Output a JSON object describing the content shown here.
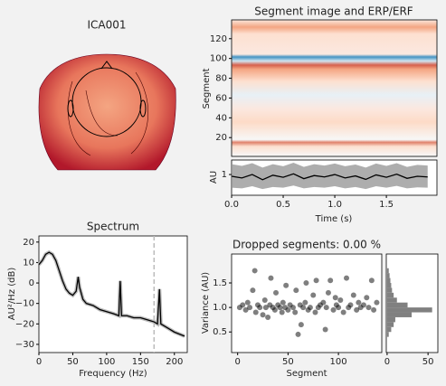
{
  "chart_data": [
    {
      "type": "topomap",
      "title": "ICA001"
    },
    {
      "type": "image",
      "title": "Segment image and ERP/ERF",
      "y_label": "Segment",
      "ylim": [
        1,
        139
      ],
      "yticks": [
        20,
        40,
        60,
        80,
        100,
        120
      ]
    },
    {
      "type": "line",
      "x_label": "Time (s)",
      "y_label": "AU",
      "xlim": [
        0,
        1.99
      ],
      "ylim": [
        0.4,
        1.42
      ],
      "xticks": [
        {
          "value": 0,
          "label": "0.0"
        },
        0.5,
        {
          "value": 1,
          "label": "1.0"
        },
        1.5
      ],
      "yticks": [
        1
      ],
      "x": [
        0,
        0.1,
        0.2,
        0.3,
        0.4,
        0.5,
        0.6,
        0.7,
        0.8,
        0.9,
        1.0,
        1.1,
        1.2,
        1.3,
        1.4,
        1.5,
        1.6,
        1.7,
        1.8,
        1.9
      ],
      "series": [
        {
          "color": "#000000",
          "values": [
            0.95,
            0.9,
            1.0,
            0.85,
            0.98,
            0.92,
            1.02,
            0.88,
            0.97,
            0.93,
            1.0,
            0.9,
            0.96,
            0.86,
            0.99,
            0.92,
            1.01,
            0.89,
            0.95,
            0.93
          ]
        }
      ],
      "band": {
        "color": "#999999",
        "lower": [
          0.62,
          0.6,
          0.66,
          0.58,
          0.64,
          0.62,
          0.68,
          0.6,
          0.64,
          0.62,
          0.66,
          0.6,
          0.64,
          0.58,
          0.66,
          0.62,
          0.67,
          0.6,
          0.63,
          0.62
        ],
        "upper": [
          1.3,
          1.25,
          1.33,
          1.2,
          1.3,
          1.24,
          1.34,
          1.22,
          1.3,
          1.26,
          1.32,
          1.24,
          1.29,
          1.2,
          1.32,
          1.25,
          1.33,
          1.22,
          1.28,
          1.26
        ]
      }
    },
    {
      "type": "line",
      "title": "Spectrum",
      "x_label": "Frequency (Hz)",
      "y_label": "AU²/Hz (dB)",
      "xlim": [
        0,
        219
      ],
      "ylim": [
        -34,
        23
      ],
      "xticks": [
        0,
        50,
        100,
        150,
        200
      ],
      "yticks": [
        {
          "value": -30,
          "label": "−30"
        },
        {
          "value": -20,
          "label": "−20"
        },
        {
          "value": -10,
          "label": "−10"
        },
        0,
        10,
        20
      ],
      "vline": 170,
      "x": [
        0,
        5,
        10,
        15,
        20,
        25,
        30,
        35,
        40,
        45,
        50,
        55,
        58,
        60,
        65,
        70,
        80,
        90,
        100,
        110,
        118,
        120,
        122,
        130,
        140,
        150,
        160,
        170,
        175,
        178,
        180,
        190,
        200,
        215
      ],
      "series": [
        {
          "color": "#000000",
          "values": [
            9,
            11,
            14,
            15,
            14,
            11,
            6,
            1,
            -3,
            -5,
            -6,
            -4,
            3,
            -2,
            -8,
            -10,
            -11,
            -13,
            -14,
            -15,
            -16,
            1,
            -16,
            -16,
            -17,
            -17,
            -18,
            -19,
            -20,
            -3,
            -20,
            -22,
            -24,
            -26
          ]
        }
      ]
    },
    {
      "type": "scatter",
      "title": "Dropped segments: 0.00 %",
      "x_label": "Segment",
      "y_label": "Variance (AU)",
      "xlim": [
        -6,
        143
      ],
      "ylim": [
        0.08,
        2.09
      ],
      "xticks": [
        0,
        50,
        100
      ],
      "yticks": [
        0.5,
        {
          "value": 1,
          "label": "1.0"
        },
        1.5
      ],
      "color": "#000000",
      "x": [
        2,
        5,
        8,
        10,
        12,
        15,
        17,
        18,
        20,
        22,
        25,
        27,
        28,
        30,
        32,
        33,
        35,
        37,
        38,
        40,
        42,
        44,
        45,
        47,
        48,
        50,
        52,
        55,
        57,
        58,
        60,
        62,
        63,
        65,
        67,
        68,
        70,
        72,
        75,
        77,
        78,
        80,
        82,
        85,
        87,
        88,
        90,
        92,
        95,
        97,
        98,
        100,
        102,
        105,
        108,
        110,
        112,
        115,
        118,
        120,
        122,
        125,
        128,
        130,
        133,
        135,
        138
      ],
      "values": [
        1.0,
        1.05,
        0.95,
        1.1,
        1.0,
        1.35,
        1.75,
        0.9,
        1.05,
        1.0,
        0.85,
        1.15,
        1.0,
        0.8,
        1.05,
        1.6,
        1.0,
        0.95,
        1.3,
        1.05,
        1.0,
        0.9,
        1.1,
        1.0,
        1.45,
        0.95,
        1.05,
        1.0,
        0.9,
        1.35,
        0.45,
        1.05,
        0.65,
        1.0,
        1.1,
        1.5,
        0.95,
        1.0,
        1.25,
        0.9,
        1.55,
        1.0,
        1.05,
        1.1,
        0.55,
        1.0,
        1.3,
        1.55,
        0.95,
        1.2,
        1.05,
        1.0,
        1.15,
        0.9,
        1.6,
        1.0,
        1.05,
        1.25,
        0.95,
        1.1,
        1.0,
        1.05,
        1.2,
        1.0,
        1.55,
        0.95,
        1.1
      ]
    },
    {
      "type": "histogram",
      "orientation": "horizontal",
      "xlim": [
        -1,
        62
      ],
      "ylim": [
        0.08,
        2.09
      ],
      "xticks": [
        0,
        50
      ],
      "color": "#808080",
      "bins": [
        0.4,
        0.5,
        0.6,
        0.7,
        0.8,
        0.9,
        1.0,
        1.1,
        1.2,
        1.3,
        1.4,
        1.5,
        1.6,
        1.7,
        1.8
      ],
      "counts": [
        2,
        5,
        8,
        10,
        30,
        55,
        25,
        12,
        8,
        6,
        5,
        4,
        3,
        2
      ]
    }
  ]
}
